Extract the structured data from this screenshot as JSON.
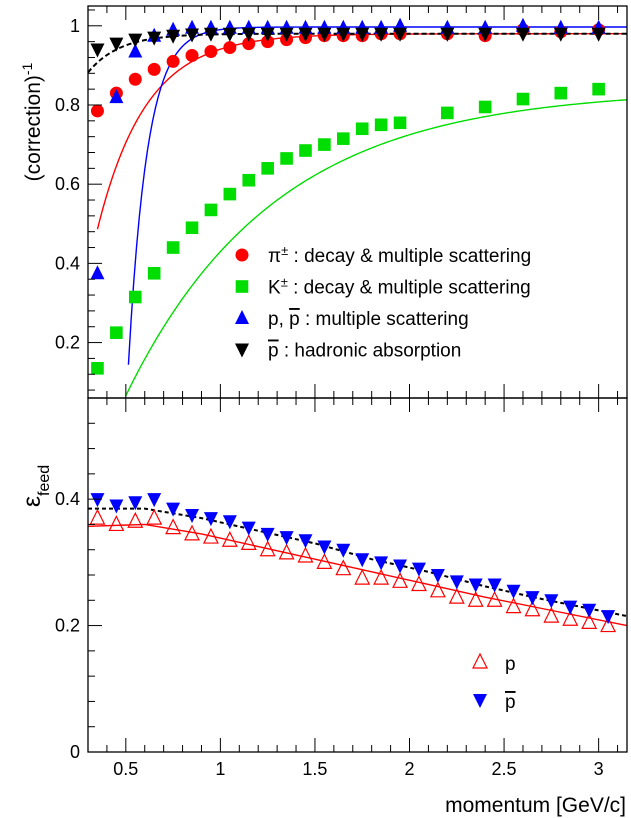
{
  "chart_data": [
    {
      "type": "scatter",
      "panel": "top",
      "title": "",
      "xlabel": "",
      "ylabel": "(correction)",
      "ylabel_superscript": "-1",
      "xlim": [
        0.3,
        3.15
      ],
      "ylim": [
        0.06,
        1.05
      ],
      "x_ticks": [
        0.5,
        1,
        1.5,
        2,
        2.5,
        3
      ],
      "y_ticks": [
        0.2,
        0.4,
        0.6,
        0.8,
        1
      ],
      "y_tick_labels": [
        "0.2",
        "0.4",
        "0.6",
        "0.8",
        "1"
      ],
      "grid": false,
      "legend_position": "center-right",
      "series": [
        {
          "name": "π± :  decay & multiple scattering",
          "legend_main": "π",
          "legend_super": "±",
          "legend_rest": " :  decay & multiple scattering",
          "marker": "circle",
          "color": "#ff0000",
          "x": [
            0.35,
            0.45,
            0.55,
            0.65,
            0.75,
            0.85,
            0.95,
            1.05,
            1.15,
            1.25,
            1.35,
            1.45,
            1.55,
            1.65,
            1.75,
            1.85,
            1.95,
            2.2,
            2.4,
            2.6,
            2.8,
            3.0
          ],
          "values": [
            0.785,
            0.83,
            0.865,
            0.89,
            0.91,
            0.925,
            0.935,
            0.945,
            0.955,
            0.96,
            0.965,
            0.97,
            0.975,
            0.975,
            0.975,
            0.98,
            0.98,
            0.98,
            0.975,
            0.99,
            0.985,
            0.99
          ],
          "fit": {
            "asymptote": 0.98,
            "amplitude": 0.6,
            "rate": 3.9,
            "x0": 0.35,
            "xmax": 3.15,
            "color": "#ff0000"
          }
        },
        {
          "name": "K± : decay & multiple scattering",
          "legend_main": "K",
          "legend_super": "±",
          "legend_rest": " : decay & multiple scattering",
          "marker": "square",
          "color": "#00dd00",
          "x": [
            0.35,
            0.45,
            0.55,
            0.65,
            0.75,
            0.85,
            0.95,
            1.05,
            1.15,
            1.25,
            1.35,
            1.45,
            1.55,
            1.65,
            1.75,
            1.85,
            1.95,
            2.2,
            2.4,
            2.6,
            2.8,
            3.0
          ],
          "values": [
            0.135,
            0.225,
            0.315,
            0.375,
            0.44,
            0.49,
            0.535,
            0.575,
            0.61,
            0.64,
            0.665,
            0.685,
            0.7,
            0.715,
            0.74,
            0.75,
            0.755,
            0.78,
            0.795,
            0.815,
            0.83,
            0.84
          ],
          "fit": {
            "asymptote": 0.84,
            "amplitude": 0.998,
            "rate": 1.27,
            "x0": 0.33,
            "xmax": 3.15,
            "color": "#00dd00"
          }
        },
        {
          "name": "p, p :  multiple scattering",
          "legend_main": "p, ",
          "legend_bar": "p",
          "legend_rest": " :  multiple scattering",
          "marker": "triangle-up",
          "color": "#0000ff",
          "x": [
            0.35,
            0.45,
            0.55,
            0.65,
            0.75,
            0.85,
            0.95,
            1.05,
            1.15,
            1.25,
            1.35,
            1.45,
            1.55,
            1.65,
            1.75,
            1.85,
            1.95,
            2.2,
            2.4,
            2.6,
            2.8,
            3.0
          ],
          "values": [
            0.375,
            0.82,
            0.935,
            0.975,
            0.99,
            0.995,
            0.995,
            0.995,
            0.995,
            0.995,
            0.995,
            0.995,
            0.995,
            0.995,
            0.995,
            0.995,
            1.0,
            0.995,
            0.995,
            1.0,
            0.995,
            0.995
          ],
          "fit": {
            "asymptote": 0.997,
            "amplitude": 7.23,
            "rate": 10.0,
            "x0": 0.3,
            "xmax": 3.15,
            "color": "#0000ff"
          }
        },
        {
          "name": "p : hadronic absorption",
          "legend_main": "",
          "legend_bar": "p",
          "legend_rest": " : hadronic absorption",
          "marker": "triangle-down",
          "color": "#000000",
          "x": [
            0.35,
            0.45,
            0.55,
            0.65,
            0.75,
            0.85,
            0.95,
            1.05,
            1.15,
            1.25,
            1.35,
            1.45,
            1.55,
            1.65,
            1.75,
            1.85,
            1.95,
            2.2,
            2.4,
            2.6,
            2.8,
            3.0
          ],
          "values": [
            0.94,
            0.955,
            0.965,
            0.97,
            0.975,
            0.978,
            0.98,
            0.98,
            0.98,
            0.98,
            0.98,
            0.98,
            0.98,
            0.98,
            0.98,
            0.98,
            0.98,
            0.98,
            0.98,
            0.98,
            0.98,
            0.98
          ],
          "fit": {
            "asymptote": 0.98,
            "amplitude": 0.098,
            "rate": 6.0,
            "x0": 0.3,
            "xmax": 3.15,
            "color": "#000000",
            "dashed": true
          }
        }
      ]
    },
    {
      "type": "scatter",
      "panel": "bottom",
      "title": "",
      "xlabel": "momentum [GeV/c]",
      "ylabel": "ε",
      "ylabel_subscript": "feed",
      "xlim": [
        0.3,
        3.15
      ],
      "ylim": [
        0,
        0.56
      ],
      "x_ticks": [
        0.5,
        1,
        1.5,
        2,
        2.5,
        3
      ],
      "x_tick_labels": [
        "0.5",
        "1",
        "1.5",
        "2",
        "2.5",
        "3"
      ],
      "y_ticks": [
        0,
        0.2,
        0.4
      ],
      "y_tick_labels": [
        "0",
        "0.2",
        "0.4"
      ],
      "grid": false,
      "legend_position": "bottom-right",
      "series": [
        {
          "name": "p",
          "legend_bar": false,
          "marker": "triangle-up-open",
          "color": "#ff0000",
          "x": [
            0.35,
            0.45,
            0.55,
            0.65,
            0.75,
            0.85,
            0.95,
            1.05,
            1.15,
            1.25,
            1.35,
            1.45,
            1.55,
            1.65,
            1.75,
            1.85,
            1.95,
            2.05,
            2.15,
            2.25,
            2.35,
            2.45,
            2.55,
            2.65,
            2.75,
            2.85,
            2.95,
            3.05
          ],
          "values": [
            0.37,
            0.36,
            0.365,
            0.37,
            0.355,
            0.345,
            0.34,
            0.335,
            0.33,
            0.32,
            0.315,
            0.31,
            0.3,
            0.29,
            0.275,
            0.275,
            0.27,
            0.265,
            0.255,
            0.245,
            0.24,
            0.24,
            0.23,
            0.225,
            0.215,
            0.21,
            0.205,
            0.2
          ],
          "fit": {
            "points": [
              [
                0.3,
                0.357
              ],
              [
                0.6,
                0.36
              ],
              [
                0.9,
                0.345
              ],
              [
                1.2,
                0.325
              ],
              [
                1.5,
                0.305
              ],
              [
                1.8,
                0.285
              ],
              [
                2.1,
                0.265
              ],
              [
                2.4,
                0.245
              ],
              [
                2.7,
                0.227
              ],
              [
                3.15,
                0.2
              ]
            ],
            "color": "#ff0000"
          }
        },
        {
          "name": "p",
          "legend_bar": true,
          "marker": "triangle-down",
          "color": "#0000ff",
          "x": [
            0.35,
            0.45,
            0.55,
            0.65,
            0.75,
            0.85,
            0.95,
            1.05,
            1.15,
            1.25,
            1.35,
            1.45,
            1.55,
            1.65,
            1.75,
            1.85,
            1.95,
            2.05,
            2.15,
            2.25,
            2.35,
            2.45,
            2.55,
            2.65,
            2.75,
            2.85,
            2.95,
            3.05
          ],
          "values": [
            0.4,
            0.39,
            0.395,
            0.4,
            0.385,
            0.375,
            0.37,
            0.365,
            0.355,
            0.345,
            0.34,
            0.335,
            0.325,
            0.32,
            0.305,
            0.3,
            0.295,
            0.29,
            0.28,
            0.27,
            0.265,
            0.265,
            0.255,
            0.245,
            0.24,
            0.23,
            0.225,
            0.215
          ],
          "fit": {
            "points": [
              [
                0.3,
                0.385
              ],
              [
                0.6,
                0.385
              ],
              [
                0.9,
                0.37
              ],
              [
                1.2,
                0.35
              ],
              [
                1.5,
                0.33
              ],
              [
                1.8,
                0.305
              ],
              [
                2.1,
                0.285
              ],
              [
                2.4,
                0.262
              ],
              [
                2.7,
                0.242
              ],
              [
                3.15,
                0.215
              ]
            ],
            "color": "#000000",
            "dashed": true
          }
        }
      ]
    }
  ]
}
